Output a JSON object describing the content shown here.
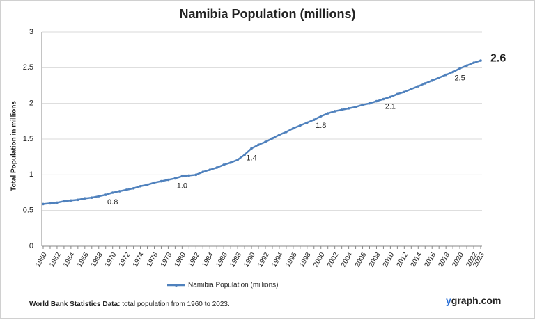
{
  "chart_data": {
    "type": "line",
    "title": "Namibia Population (millions)",
    "y_label": "Total Population  in millions",
    "categories": [
      "1960",
      null,
      "1962",
      null,
      "1964",
      null,
      "1966",
      null,
      "1968",
      null,
      "1970",
      null,
      "1972",
      null,
      "1974",
      null,
      "1976",
      null,
      "1978",
      null,
      "1980",
      null,
      "1982",
      null,
      "1984",
      null,
      "1986",
      null,
      "1988",
      null,
      "1990",
      null,
      "1992",
      null,
      "1994",
      null,
      "1996",
      null,
      "1998",
      null,
      "2000",
      null,
      "2002",
      null,
      "2004",
      null,
      "2006",
      null,
      "2008",
      null,
      "2010",
      null,
      "2012",
      null,
      "2014",
      null,
      "2016",
      null,
      "2018",
      null,
      "2020",
      null,
      "2022",
      "2023"
    ],
    "series": [
      {
        "name": "Namibia Population (millions)",
        "color": "#4f81bd",
        "values": [
          0.59,
          0.6,
          0.61,
          0.63,
          0.64,
          0.65,
          0.67,
          0.68,
          0.7,
          0.72,
          0.75,
          0.77,
          0.79,
          0.81,
          0.84,
          0.86,
          0.89,
          0.91,
          0.93,
          0.95,
          0.98,
          0.99,
          1.0,
          1.04,
          1.07,
          1.1,
          1.14,
          1.17,
          1.21,
          1.28,
          1.37,
          1.42,
          1.46,
          1.51,
          1.56,
          1.6,
          1.65,
          1.69,
          1.73,
          1.77,
          1.82,
          1.86,
          1.89,
          1.91,
          1.93,
          1.95,
          1.98,
          2.0,
          2.03,
          2.06,
          2.09,
          2.13,
          2.16,
          2.2,
          2.24,
          2.28,
          2.32,
          2.36,
          2.4,
          2.44,
          2.49,
          2.53,
          2.57,
          2.6
        ],
        "value_labels": [
          null,
          null,
          null,
          null,
          null,
          null,
          null,
          null,
          null,
          null,
          "0.8",
          null,
          null,
          null,
          null,
          null,
          null,
          null,
          null,
          null,
          "1.0",
          null,
          null,
          null,
          null,
          null,
          null,
          null,
          null,
          null,
          "1.4",
          null,
          null,
          null,
          null,
          null,
          null,
          null,
          null,
          null,
          "1.8",
          null,
          null,
          null,
          null,
          null,
          null,
          null,
          null,
          null,
          "2.1",
          null,
          null,
          null,
          null,
          null,
          null,
          null,
          null,
          null,
          "2.5",
          null,
          null,
          "2.6"
        ]
      }
    ],
    "ylim": [
      0,
      3
    ],
    "yticks": [
      0,
      0.5,
      1,
      1.5,
      2,
      2.5,
      3
    ],
    "grid": true
  },
  "footer": {
    "source_bold": "World Bank Statistics Data:",
    "source_text": "total population from 1960 to 2023.",
    "brand_prefix": "y",
    "brand_rest": "graph.com"
  }
}
